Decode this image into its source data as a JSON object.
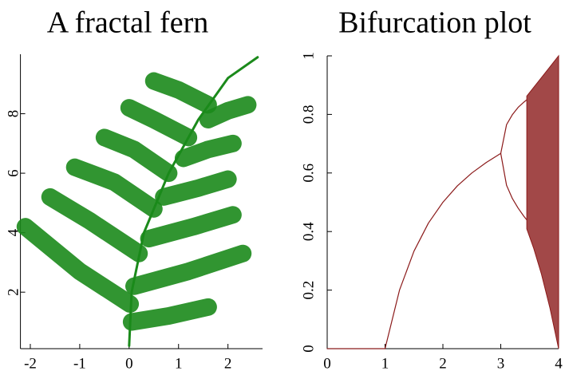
{
  "chart_data": [
    {
      "type": "line",
      "title": "A fractal fern",
      "color": "#1b8a1b",
      "xlim": [
        -2.2,
        2.7
      ],
      "ylim": [
        0.1,
        10
      ],
      "xticks": [
        -2,
        -1,
        0,
        1,
        2
      ],
      "yticks": [
        2,
        4,
        6,
        8
      ],
      "series": [
        {
          "x": [
            0,
            0.05,
            0.3,
            0.8,
            1.4,
            2.0,
            2.6
          ],
          "values": [
            0.2,
            2,
            4,
            6,
            7.8,
            9.2,
            9.9
          ]
        },
        {
          "x": [
            0.02,
            -1,
            -2.1
          ],
          "values": [
            1.6,
            2.7,
            4.2
          ]
        },
        {
          "x": [
            0.2,
            -0.8,
            -1.6
          ],
          "values": [
            3.3,
            4.4,
            5.2
          ]
        },
        {
          "x": [
            0.5,
            -0.3,
            -1.1
          ],
          "values": [
            4.8,
            5.7,
            6.2
          ]
        },
        {
          "x": [
            0.8,
            0.1,
            -0.5
          ],
          "values": [
            6,
            6.8,
            7.2
          ]
        },
        {
          "x": [
            1.2,
            0.5,
            0
          ],
          "values": [
            7.2,
            7.8,
            8.2
          ]
        },
        {
          "x": [
            1.6,
            1.0,
            0.5
          ],
          "values": [
            8.3,
            8.8,
            9.1
          ]
        },
        {
          "x": [
            0.05,
            0.8,
            1.6
          ],
          "values": [
            1.0,
            1.2,
            1.5
          ]
        },
        {
          "x": [
            0.1,
            1.2,
            2.3
          ],
          "values": [
            2.2,
            2.7,
            3.3
          ]
        },
        {
          "x": [
            0.4,
            1.3,
            2.1
          ],
          "values": [
            3.8,
            4.2,
            4.6
          ]
        },
        {
          "x": [
            0.7,
            1.4,
            2.0
          ],
          "values": [
            5.2,
            5.5,
            5.8
          ]
        },
        {
          "x": [
            1.1,
            1.6,
            2.1
          ],
          "values": [
            6.5,
            6.8,
            7.0
          ]
        },
        {
          "x": [
            1.6,
            2.0,
            2.4
          ],
          "values": [
            7.8,
            8.1,
            8.3
          ]
        }
      ]
    },
    {
      "type": "line",
      "title": "Bifurcation plot",
      "color": "#8b1a1a",
      "xlim": [
        0,
        4
      ],
      "ylim": [
        0,
        1
      ],
      "xticks": [
        0,
        1,
        2,
        3,
        4
      ],
      "yticks": [
        0,
        0.2,
        0.4,
        0.6,
        0.8,
        1
      ],
      "series": [
        {
          "x": [
            0,
            1
          ],
          "values": [
            0,
            0
          ]
        },
        {
          "x": [
            1,
            1.25,
            1.5,
            1.75,
            2,
            2.25,
            2.5,
            2.75,
            3
          ],
          "values": [
            0,
            0.2,
            0.333,
            0.429,
            0.5,
            0.556,
            0.6,
            0.636,
            0.667
          ]
        },
        {
          "x": [
            3,
            3.1,
            3.2,
            3.3,
            3.4,
            3.449
          ],
          "values": [
            0.667,
            0.765,
            0.799,
            0.824,
            0.842,
            0.85
          ]
        },
        {
          "x": [
            3,
            3.1,
            3.2,
            3.3,
            3.4,
            3.449
          ],
          "values": [
            0.667,
            0.558,
            0.513,
            0.48,
            0.452,
            0.44
          ]
        },
        {
          "x": [
            3.45,
            3.57,
            3.7,
            3.85,
            4
          ],
          "values": [
            0.8625,
            0.8925,
            0.925,
            0.9625,
            1
          ],
          "lower": [
            0.409,
            0.3425,
            0.257,
            0.139,
            0
          ]
        }
      ]
    }
  ]
}
